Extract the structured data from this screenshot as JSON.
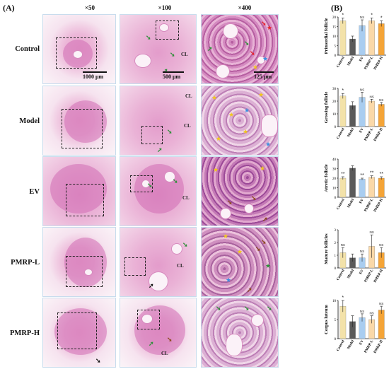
{
  "panel_a_label": "(A)",
  "panel_b_label": "(B)",
  "magnifications": [
    "×50",
    "×100",
    "×400"
  ],
  "rows": [
    {
      "label": "Control"
    },
    {
      "label": "Model"
    },
    {
      "label": "EV"
    },
    {
      "label": "PMRP-L"
    },
    {
      "label": "PMRP-H"
    }
  ],
  "scale_bars": {
    "low": "1000 μm",
    "mid": "500 μm",
    "high": "125 μm"
  },
  "cl_label": "CL",
  "marker_colors": {
    "red": "#e8232a",
    "green": "#2f8f3a",
    "yellow": "#f2c81c",
    "blue": "#3a8fe0",
    "brown": "#8b4a1c",
    "black": "#111111"
  },
  "chart_data": [
    {
      "type": "bar",
      "ylabel": "Primordial follicle",
      "ylim": [
        0,
        20
      ],
      "yticks": [
        0,
        5,
        10,
        15,
        20
      ],
      "categories": [
        "Control",
        "Model",
        "EV",
        "PMRP-L",
        "PMRP-H"
      ],
      "values": [
        18,
        8.5,
        15.5,
        18,
        16.5
      ],
      "errors": [
        1.5,
        1.5,
        3,
        1.5,
        1.5
      ],
      "annotations": [
        "*",
        "",
        "NS",
        "*",
        "*"
      ]
    },
    {
      "type": "bar",
      "ylabel": "Growing follicle",
      "ylim": [
        0,
        30
      ],
      "yticks": [
        0,
        10,
        20,
        30
      ],
      "categories": [
        "Control",
        "Model",
        "EV",
        "PMRP-L",
        "PMRP-H"
      ],
      "values": [
        24,
        16.5,
        23,
        20,
        17.5
      ],
      "errors": [
        2,
        3,
        4,
        1.5,
        1.5
      ],
      "annotations": [
        "*",
        "",
        "NS",
        "NS",
        "NS"
      ]
    },
    {
      "type": "bar",
      "ylabel": "Atretic follicle",
      "ylim": [
        0,
        40
      ],
      "yticks": [
        0,
        10,
        20,
        30,
        40
      ],
      "categories": [
        "Control",
        "Model",
        "EV",
        "PMRP-L",
        "PMRP-H"
      ],
      "values": [
        20,
        30.5,
        19,
        21,
        20
      ],
      "errors": [
        1.5,
        2.5,
        1,
        1.5,
        1.5
      ],
      "annotations": [
        "**",
        "",
        "**",
        "**",
        "**"
      ]
    },
    {
      "type": "bar",
      "ylabel": "Mature follicles",
      "ylim": [
        0,
        3
      ],
      "yticks": [
        0,
        1,
        2,
        3
      ],
      "categories": [
        "Control",
        "Model",
        "EV",
        "PMRP-L",
        "PMRP-H"
      ],
      "values": [
        1.2,
        0.8,
        0.8,
        1.7,
        1.2
      ],
      "errors": [
        0.4,
        0.3,
        0.3,
        0.9,
        0.4
      ],
      "annotations": [
        "NS",
        "",
        "NS",
        "NS",
        "NS"
      ]
    },
    {
      "type": "bar",
      "ylabel": "Corpus luteum",
      "ylim": [
        0,
        10
      ],
      "yticks": [
        0,
        5,
        10
      ],
      "categories": [
        "Control",
        "Model",
        "EV",
        "PMRP-L",
        "PMRP-H"
      ],
      "values": [
        8.5,
        4.5,
        5.5,
        5,
        7.5
      ],
      "errors": [
        1.5,
        1.5,
        1,
        1,
        1
      ],
      "annotations": [
        "*",
        "",
        "NS",
        "NS",
        "NS"
      ]
    }
  ],
  "bar_colors": [
    "#f3e2a9",
    "#5a5a5a",
    "#a9cdf0",
    "#fad8a8",
    "#f4a437"
  ]
}
